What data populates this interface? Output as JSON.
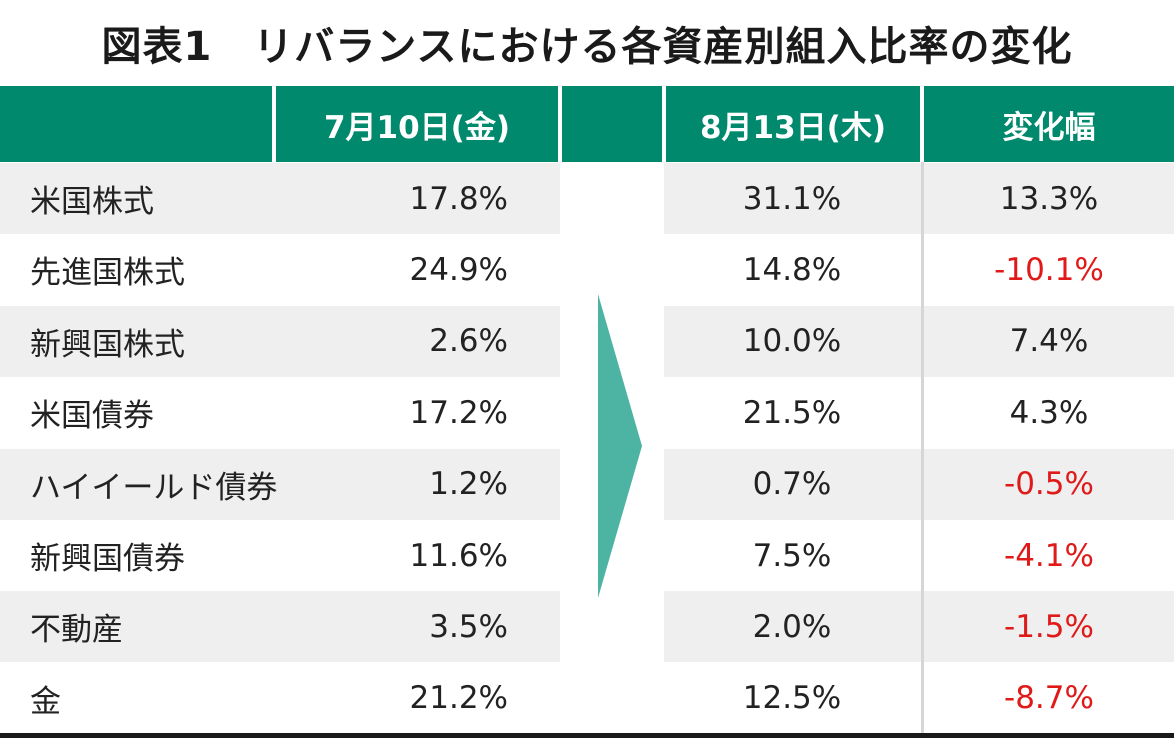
{
  "title": "図表1　リバランスにおける各資産別組入比率の変化",
  "headers": {
    "blank": "",
    "date1": "7月10日(金)",
    "mid": "",
    "date2": "8月13日(木)",
    "change": "変化幅"
  },
  "colors": {
    "header_bg": "#00896d",
    "arrow": "#4db3a3",
    "negative": "#e01919",
    "row_shade": "#efefef"
  },
  "rows": [
    {
      "asset": "米国株式",
      "before": "17.8%",
      "after": "31.1%",
      "change": "13.3%",
      "negative": false
    },
    {
      "asset": "先進国株式",
      "before": "24.9%",
      "after": "14.8%",
      "change": "-10.1%",
      "negative": true
    },
    {
      "asset": "新興国株式",
      "before": "2.6%",
      "after": "10.0%",
      "change": "7.4%",
      "negative": false
    },
    {
      "asset": "米国債券",
      "before": "17.2%",
      "after": "21.5%",
      "change": "4.3%",
      "negative": false
    },
    {
      "asset": "ハイイールド債券",
      "before": "1.2%",
      "after": "0.7%",
      "change": "-0.5%",
      "negative": true
    },
    {
      "asset": "新興国債券",
      "before": "11.6%",
      "after": "7.5%",
      "change": "-4.1%",
      "negative": true
    },
    {
      "asset": "不動産",
      "before": "3.5%",
      "after": "2.0%",
      "change": "-1.5%",
      "negative": true
    },
    {
      "asset": "金",
      "before": "21.2%",
      "after": "12.5%",
      "change": "-8.7%",
      "negative": true
    }
  ]
}
